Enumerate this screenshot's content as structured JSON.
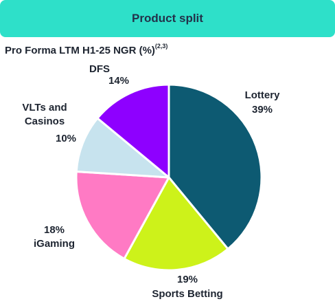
{
  "header": {
    "title": "Product split"
  },
  "subtitle": {
    "text": "Pro Forma LTM H1-25 NGR (%)",
    "superscript": "(2,3)"
  },
  "chart_data": {
    "type": "pie",
    "title": "Product split",
    "subtitle": "Pro Forma LTM H1-25 NGR (%)",
    "slices": [
      {
        "label": "Lottery",
        "value": 39,
        "display": "39%",
        "color": "#0d5a72"
      },
      {
        "label": "Sports Betting",
        "value": 19,
        "display": "19%",
        "color": "#cdf21a"
      },
      {
        "label": "iGaming",
        "value": 18,
        "display": "18%",
        "color": "#ff7ac4"
      },
      {
        "label": "VLTs and Casinos",
        "value": 10,
        "display": "10%",
        "color": "#c7e3ee"
      },
      {
        "label": "DFS",
        "value": 14,
        "display": "14%",
        "color": "#8e00ff"
      }
    ],
    "label_lines": {
      "lottery": "Lottery",
      "sports_betting": "Sports Betting",
      "igaming": "iGaming",
      "vlts_line1": "VLTs and",
      "vlts_line2": "Casinos",
      "dfs": "DFS"
    }
  }
}
